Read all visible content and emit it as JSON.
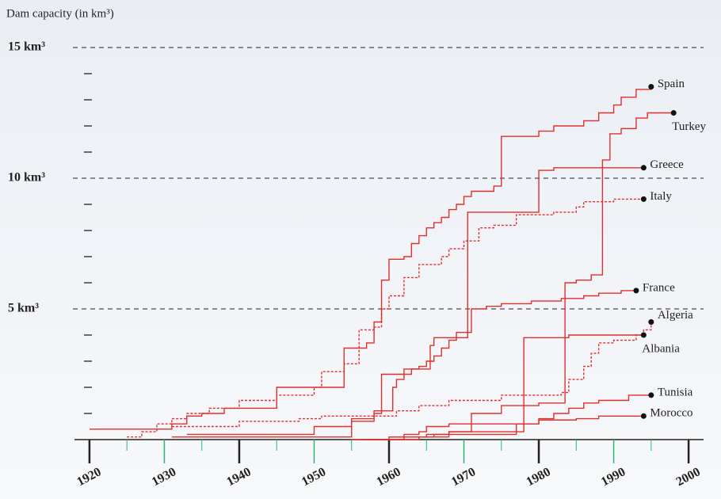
{
  "chart_data": {
    "type": "step-line",
    "y_axis_label": "Dam capacity (in km³)",
    "xlim": [
      1918,
      2002
    ],
    "ylim": [
      0,
      15
    ],
    "xticks": [
      1920,
      1930,
      1940,
      1950,
      1960,
      1970,
      1980,
      1990,
      2000
    ],
    "xminor_ticks": [
      1925,
      1935,
      1945,
      1955,
      1965,
      1975,
      1985,
      1995
    ],
    "yticks": [
      {
        "value": 5,
        "label": "5 km³"
      },
      {
        "value": 10,
        "label": "10 km³"
      },
      {
        "value": 15,
        "label": "15 km³"
      }
    ],
    "yminor_ticks": [
      1,
      2,
      3,
      4,
      6,
      7,
      8,
      9,
      11,
      12,
      13,
      14
    ],
    "grid": "dashed",
    "series": [
      {
        "name": "Spain",
        "color": "#e0302e",
        "dashed": false,
        "x": [
          1920,
          1931,
          1933,
          1935,
          1938,
          1945,
          1954,
          1957,
          1958,
          1959,
          1960,
          1962,
          1963,
          1964,
          1965,
          1966,
          1967,
          1968,
          1969,
          1970,
          1971,
          1974,
          1975,
          1980,
          1982,
          1986,
          1988,
          1990,
          1991,
          1993,
          1995
        ],
        "values": [
          0.4,
          0.6,
          0.9,
          1.0,
          1.2,
          2.0,
          3.5,
          3.7,
          4.5,
          6.1,
          6.9,
          7.0,
          7.5,
          7.8,
          8.1,
          8.3,
          8.5,
          8.8,
          9.0,
          9.3,
          9.5,
          9.7,
          11.6,
          11.8,
          12.0,
          12.2,
          12.5,
          12.8,
          13.1,
          13.4,
          13.5
        ]
      },
      {
        "name": "Turkey",
        "color": "#e0302e",
        "dashed": false,
        "x": [
          1955,
          1960,
          1965,
          1968,
          1971,
          1975,
          1980,
          1983.5,
          1985,
          1987,
          1988.5,
          1989.5,
          1991,
          1993,
          1994.5,
          1998
        ],
        "values": [
          0,
          0.1,
          0.2,
          0.3,
          1.0,
          1.3,
          1.4,
          6.0,
          6.1,
          6.3,
          10.7,
          11.7,
          11.9,
          12.3,
          12.5,
          12.5
        ]
      },
      {
        "name": "Greece",
        "color": "#e0302e",
        "dashed": false,
        "x": [
          1931,
          1955,
          1958,
          1960.5,
          1961,
          1962,
          1963,
          1965.5,
          1966,
          1970.5,
          1980,
          1982,
          1994
        ],
        "values": [
          0.1,
          0.8,
          1.1,
          2.0,
          2.3,
          2.5,
          2.7,
          3.6,
          3.9,
          8.7,
          10.3,
          10.4,
          10.4
        ]
      },
      {
        "name": "Italy",
        "color": "#e0302e",
        "dashed": true,
        "x": [
          1925,
          1927,
          1929,
          1931,
          1933,
          1936,
          1940,
          1945,
          1950,
          1951,
          1954,
          1956,
          1958,
          1959,
          1960,
          1962,
          1964,
          1967,
          1968,
          1970,
          1972,
          1974,
          1977,
          1982,
          1985,
          1986,
          1990,
          1994
        ],
        "values": [
          0.1,
          0.3,
          0.6,
          0.8,
          1.0,
          1.2,
          1.5,
          1.7,
          2.0,
          2.6,
          2.9,
          4.2,
          4.3,
          5.0,
          5.5,
          6.2,
          6.7,
          7.0,
          7.3,
          7.6,
          8.1,
          8.2,
          8.6,
          8.7,
          8.9,
          9.1,
          9.2,
          9.2
        ]
      },
      {
        "name": "France",
        "color": "#e0302e",
        "dashed": false,
        "x": [
          1933,
          1950,
          1955,
          1958,
          1959,
          1962,
          1964,
          1965,
          1966,
          1967,
          1968,
          1969,
          1971,
          1973,
          1975,
          1979,
          1983,
          1986,
          1988,
          1991,
          1993
        ],
        "values": [
          0.2,
          0.5,
          0.7,
          1.0,
          2.5,
          2.7,
          2.8,
          3.0,
          3.2,
          3.5,
          3.8,
          4.1,
          5.0,
          5.1,
          5.2,
          5.3,
          5.4,
          5.5,
          5.6,
          5.7,
          5.7
        ]
      },
      {
        "name": "Algeria",
        "color": "#e0302e",
        "dashed": true,
        "x": [
          1931,
          1940,
          1948,
          1951,
          1961,
          1964,
          1968,
          1975,
          1983,
          1984,
          1986,
          1987,
          1988,
          1990,
          1993,
          1994,
          1995
        ],
        "values": [
          0.5,
          0.7,
          0.8,
          0.9,
          1.1,
          1.3,
          1.5,
          1.7,
          1.8,
          2.3,
          2.8,
          3.3,
          3.7,
          3.8,
          4.0,
          4.2,
          4.5
        ]
      },
      {
        "name": "Albania",
        "color": "#e0302e",
        "dashed": false,
        "x": [
          1956,
          1964,
          1966,
          1968,
          1978,
          1984,
          1994
        ],
        "values": [
          0,
          0.1,
          0.2,
          0.3,
          3.9,
          4.0,
          4.0
        ]
      },
      {
        "name": "Tunisia",
        "color": "#e0302e",
        "dashed": false,
        "x": [
          1960,
          1968,
          1977,
          1980,
          1982,
          1984,
          1986,
          1988,
          1992,
          1995
        ],
        "values": [
          0.1,
          0.2,
          0.6,
          0.8,
          1.0,
          1.2,
          1.4,
          1.5,
          1.7,
          1.7
        ]
      },
      {
        "name": "Morocco",
        "color": "#e0302e",
        "dashed": false,
        "x": [
          1957,
          1962,
          1964,
          1965,
          1968,
          1980,
          1985,
          1988,
          1994
        ],
        "values": [
          0,
          0.2,
          0.3,
          0.5,
          0.6,
          0.75,
          0.8,
          0.9,
          0.9
        ]
      }
    ]
  }
}
